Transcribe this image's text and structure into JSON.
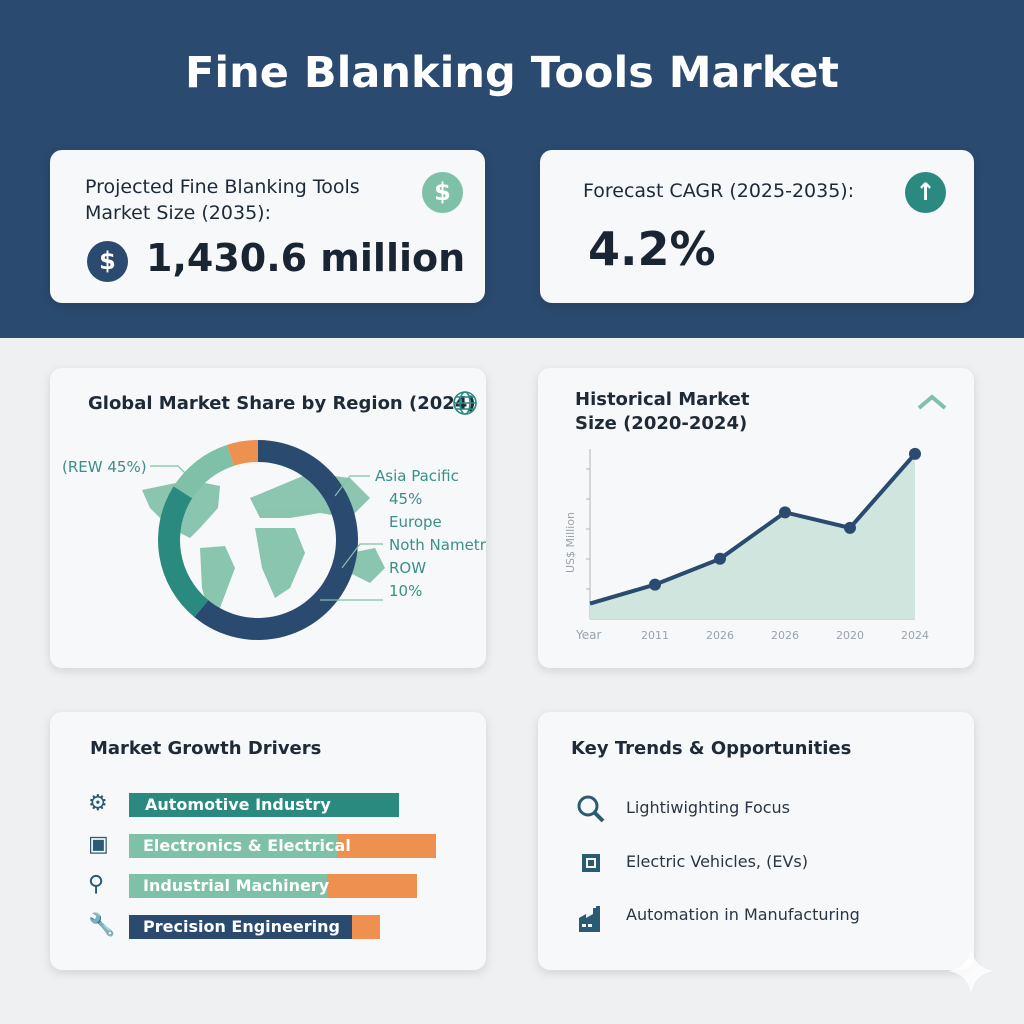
{
  "title": "Fine Blanking Tools Market",
  "kpis": {
    "market_size": {
      "label": "Projected Fine Blanking Tools Market Size (2035):",
      "value": "1,430.6 million",
      "icon": "dollar-icon"
    },
    "cagr": {
      "label": "Forecast CAGR (2025-2035):",
      "value": "4.2%",
      "icon": "arrow-up-icon"
    }
  },
  "colors": {
    "navy": "#2b4a6f",
    "teal": "#2a8a80",
    "light_green": "#7fc0a8",
    "orange": "#ee9050"
  },
  "chart_data": [
    {
      "type": "pie",
      "title": "Global Market Share by Region (2024)",
      "donut": true,
      "slices": [
        {
          "value": 61,
          "color": "#2b4a6f"
        },
        {
          "value": 23,
          "color": "#2a8a80"
        },
        {
          "value": 11,
          "color": "#7fc0a8"
        },
        {
          "value": 5,
          "color": "#ee9050"
        }
      ],
      "annotations": [
        "(REW 45%)",
        "Asia Pacific",
        "45%",
        "Europe",
        "Noth Nametra",
        "ROW",
        "10%"
      ]
    },
    {
      "type": "area",
      "title": "Historical Market Size (2020-2024)",
      "xlabel": "Year",
      "ylabel": "US$ Million",
      "categories": [
        "",
        "2011",
        "2026",
        "2026",
        "2020",
        "2024"
      ],
      "values": [
        9,
        20,
        35,
        62,
        53,
        96
      ],
      "ylim": [
        0,
        100
      ],
      "grid": false
    },
    {
      "type": "bar",
      "title": "Market Growth Drivers",
      "orientation": "horizontal",
      "stacked": true,
      "categories": [
        "Automotive Industry",
        "Electronics & Electrical",
        "Industrial Machinery",
        "Precision Engineering"
      ],
      "icons": [
        "gear-icon",
        "chip-icon",
        "wind-turbine-icon",
        "wrench-icon"
      ],
      "segments": [
        [
          87,
          0
        ],
        [
          67,
          32
        ],
        [
          64,
          29
        ],
        [
          72,
          9
        ]
      ],
      "segment_colors": [
        [
          "#2a8a80",
          "#ee9050"
        ],
        [
          "#7fc0a8",
          "#ee9050"
        ],
        [
          "#7fc0a8",
          "#ee9050"
        ],
        [
          "#2b4a6f",
          "#ee9050"
        ]
      ]
    }
  ],
  "trends": {
    "title": "Key Trends & Opportunities",
    "items": [
      {
        "label": "Lightiwighting Focus",
        "icon": "search-icon"
      },
      {
        "label": "Electric Vehicles, (EVs)",
        "icon": "chip-icon"
      },
      {
        "label": "Automation in Manufacturing",
        "icon": "factory-icon"
      }
    ]
  }
}
